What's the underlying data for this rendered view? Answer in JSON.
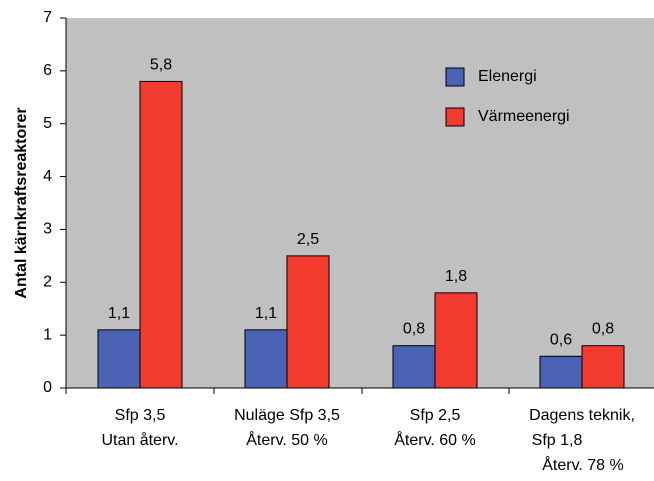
{
  "chart_data": {
    "type": "bar",
    "title": "",
    "xlabel": "",
    "ylabel": "Antal kärnkraftsreaktorer",
    "ylim": [
      0,
      7
    ],
    "yticks": [
      "0",
      "1",
      "2",
      "3",
      "4",
      "5",
      "6",
      "7"
    ],
    "grid": false,
    "legend_position": "top-right",
    "plot_background": "#c0c0c0",
    "categories": [
      [
        "Sfp 3,5",
        "Utan återv."
      ],
      [
        "Nuläge Sfp 3,5",
        "Återv. 50 %"
      ],
      [
        "Sfp 2,5",
        "Återv. 60 %"
      ],
      [
        "Dagens teknik,",
        "Sfp 1,8",
        "Återv. 78 %"
      ]
    ],
    "series": [
      {
        "name": "Elenergi",
        "color": "#4a63b5",
        "values": [
          1.1,
          1.1,
          0.8,
          0.6
        ],
        "labels": [
          "1,1",
          "1,1",
          "0,8",
          "0,6"
        ]
      },
      {
        "name": "Värmeenergi",
        "color": "#f23a2e",
        "values": [
          5.8,
          2.5,
          1.8,
          0.8
        ],
        "labels": [
          "5,8",
          "2,5",
          "1,8",
          "0,8"
        ]
      }
    ]
  }
}
